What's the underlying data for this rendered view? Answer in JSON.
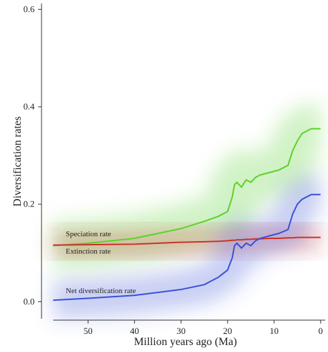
{
  "chart_data": {
    "type": "line",
    "xlabel": "Million years ago (Ma)",
    "ylabel": "Diversification rates",
    "xlim": [
      60,
      -1
    ],
    "ylim": [
      -0.035,
      0.612
    ],
    "xticks": [
      50,
      40,
      30,
      20,
      10,
      0
    ],
    "yticks": [
      {
        "value": 0,
        "label": "0.0"
      },
      0.2,
      0.4,
      0.6
    ],
    "x": [
      57.5,
      50,
      40,
      30,
      25,
      22,
      20,
      19,
      18.5,
      18,
      17,
      16,
      15,
      14,
      13,
      11,
      9,
      7,
      6,
      5,
      4,
      2,
      0
    ],
    "series": [
      {
        "name": "Speciation rate",
        "color": "#5ad22a",
        "values": [
          0.115,
          0.12,
          0.13,
          0.15,
          0.165,
          0.175,
          0.185,
          0.215,
          0.24,
          0.245,
          0.235,
          0.25,
          0.245,
          0.255,
          0.26,
          0.265,
          0.27,
          0.28,
          0.31,
          0.33,
          0.345,
          0.355,
          0.355
        ]
      },
      {
        "name": "Extinction rate",
        "color": "#c8322a",
        "values": [
          0.116,
          0.117,
          0.118,
          0.122,
          0.123,
          0.124,
          0.125,
          0.126,
          0.126,
          0.127,
          0.127,
          0.128,
          0.128,
          0.129,
          0.129,
          0.13,
          0.13,
          0.131,
          0.131,
          0.132,
          0.132,
          0.132,
          0.132
        ]
      },
      {
        "name": "Net diversification rate",
        "color": "#3a4fd8",
        "values": [
          0.003,
          0.007,
          0.013,
          0.025,
          0.035,
          0.05,
          0.065,
          0.09,
          0.115,
          0.12,
          0.11,
          0.12,
          0.115,
          0.125,
          0.13,
          0.135,
          0.14,
          0.148,
          0.18,
          0.2,
          0.21,
          0.22,
          0.22
        ]
      }
    ]
  }
}
